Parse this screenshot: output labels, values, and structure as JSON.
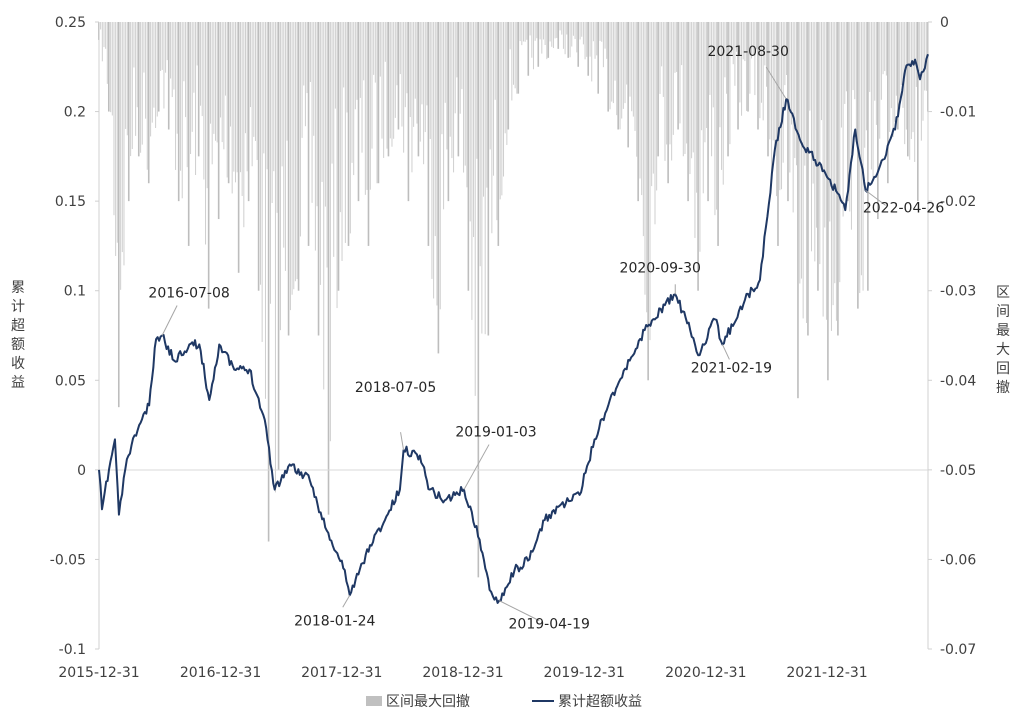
{
  "chart_data": {
    "type": "bar+line",
    "y_left": {
      "label": "累计超额收益",
      "range": [
        -0.1,
        0.25
      ],
      "ticks": [
        "0.25",
        "0.2",
        "0.15",
        "0.1",
        "0.05",
        "0",
        "-0.05",
        "-0.1"
      ]
    },
    "y_right": {
      "label": "区间最大回撤",
      "range": [
        -0.07,
        0
      ],
      "ticks": [
        "0",
        "-0.01",
        "-0.02",
        "-0.03",
        "-0.04",
        "-0.05",
        "-0.06",
        "-0.07"
      ]
    },
    "x": {
      "range": [
        "2015-12-31",
        "2022-10-31"
      ],
      "ticks": [
        "2015-12-31",
        "2016-12-31",
        "2017-12-31",
        "2018-12-31",
        "2019-12-31",
        "2020-12-31",
        "2021-12-31"
      ]
    },
    "grid": false,
    "legend": {
      "placement": "bottom",
      "entries": [
        {
          "name": "区间最大回撤",
          "color": "#c0c0c0"
        },
        {
          "name": "累计超额收益",
          "color": "#1f3864"
        }
      ]
    },
    "series": [
      {
        "name": "区间最大回撤",
        "type": "bar",
        "axis": "right",
        "color": "#c0c0c0",
        "start": "2015-12-31",
        "end": "2022-10-31",
        "values": [
          -0.002,
          -0.01,
          -0.043,
          -0.02,
          -0.015,
          -0.018,
          -0.01,
          -0.012,
          -0.02,
          -0.025,
          -0.015,
          -0.032,
          -0.022,
          -0.018,
          -0.028,
          -0.02,
          -0.03,
          -0.058,
          -0.05,
          -0.035,
          -0.03,
          -0.025,
          -0.035,
          -0.055,
          -0.03,
          -0.025,
          -0.02,
          -0.025,
          -0.018,
          -0.015,
          -0.012,
          -0.02,
          -0.015,
          -0.025,
          -0.037,
          -0.02,
          -0.015,
          -0.03,
          -0.062,
          -0.035,
          -0.025,
          -0.012,
          -0.008,
          -0.006,
          -0.005,
          -0.004,
          -0.003,
          -0.004,
          -0.005,
          -0.006,
          -0.008,
          -0.01,
          -0.012,
          -0.014,
          -0.02,
          -0.04,
          -0.015,
          -0.018,
          -0.012,
          -0.02,
          -0.03,
          -0.02,
          -0.025,
          -0.015,
          -0.012,
          -0.01,
          -0.012,
          -0.015,
          -0.025,
          -0.02,
          -0.042,
          -0.035,
          -0.03,
          -0.04,
          -0.035,
          -0.02,
          -0.032,
          -0.03,
          -0.022,
          -0.018,
          -0.012,
          -0.015,
          -0.02,
          -0.01
        ]
      },
      {
        "name": "累计超额收益",
        "type": "line",
        "axis": "left",
        "color": "#1f3864",
        "points": [
          [
            "2015-12-31",
            0
          ],
          [
            "2016-01-09",
            -0.022
          ],
          [
            "2016-01-30",
            0
          ],
          [
            "2016-02-17",
            0.017
          ],
          [
            "2016-02-29",
            -0.025
          ],
          [
            "2016-03-24",
            0.006
          ],
          [
            "2016-04-30",
            0.025
          ],
          [
            "2016-05-30",
            0.036
          ],
          [
            "2016-06-20",
            0.073
          ],
          [
            "2016-07-08",
            0.075
          ],
          [
            "2016-08-13",
            0.061
          ],
          [
            "2016-09-28",
            0.07
          ],
          [
            "2016-10-28",
            0.07
          ],
          [
            "2016-11-27",
            0.039
          ],
          [
            "2016-12-27",
            0.07
          ],
          [
            "2017-02-10",
            0.056
          ],
          [
            "2017-03-28",
            0.056
          ],
          [
            "2017-05-13",
            0.028
          ],
          [
            "2017-06-12",
            -0.011
          ],
          [
            "2017-07-27",
            0.003
          ],
          [
            "2017-09-26",
            -0.006
          ],
          [
            "2017-11-25",
            -0.039
          ],
          [
            "2018-01-09",
            -0.056
          ],
          [
            "2018-01-24",
            -0.07
          ],
          [
            "2018-03-26",
            -0.042
          ],
          [
            "2018-05-10",
            -0.028
          ],
          [
            "2018-06-24",
            -0.011
          ],
          [
            "2018-07-05",
            0.011
          ],
          [
            "2018-08-23",
            0.008
          ],
          [
            "2018-09-22",
            -0.011
          ],
          [
            "2018-11-06",
            -0.017
          ],
          [
            "2019-01-03",
            -0.011
          ],
          [
            "2019-02-19",
            -0.039
          ],
          [
            "2019-03-21",
            -0.067
          ],
          [
            "2019-04-19",
            -0.073
          ],
          [
            "2019-06-04",
            -0.056
          ],
          [
            "2019-07-19",
            -0.05
          ],
          [
            "2019-09-03",
            -0.028
          ],
          [
            "2019-10-18",
            -0.02
          ],
          [
            "2019-12-17",
            -0.014
          ],
          [
            "2020-01-31",
            0.017
          ],
          [
            "2020-03-17",
            0.039
          ],
          [
            "2020-05-16",
            0.061
          ],
          [
            "2020-06-30",
            0.078
          ],
          [
            "2020-08-30",
            0.092
          ],
          [
            "2020-09-30",
            0.098
          ],
          [
            "2020-11-14",
            0.078
          ],
          [
            "2020-12-08",
            0.064
          ],
          [
            "2021-01-28",
            0.084
          ],
          [
            "2021-02-19",
            0.07
          ],
          [
            "2021-04-28",
            0.095
          ],
          [
            "2021-06-12",
            0.106
          ],
          [
            "2021-07-27",
            0.179
          ],
          [
            "2021-08-30",
            0.207
          ],
          [
            "2021-10-11",
            0.184
          ],
          [
            "2021-11-25",
            0.173
          ],
          [
            "2022-01-09",
            0.162
          ],
          [
            "2022-02-24",
            0.145
          ],
          [
            "2022-03-26",
            0.19
          ],
          [
            "2022-04-26",
            0.156
          ],
          [
            "2022-06-09",
            0.17
          ],
          [
            "2022-07-24",
            0.19
          ],
          [
            "2022-08-23",
            0.223
          ],
          [
            "2022-09-22",
            0.229
          ],
          [
            "2022-10-07",
            0.218
          ],
          [
            "2022-10-31",
            0.232
          ]
        ]
      }
    ],
    "annotations": [
      "2016-07-08",
      "2018-01-24",
      "2018-07-05",
      "2019-01-03",
      "2019-04-19",
      "2020-09-30",
      "2021-02-19",
      "2021-08-30",
      "2022-04-26"
    ]
  }
}
